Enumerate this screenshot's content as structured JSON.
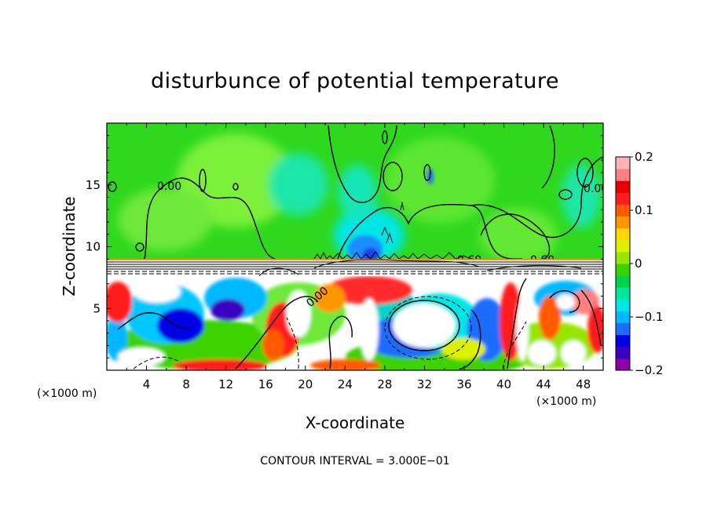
{
  "chart_data": {
    "type": "heatmap",
    "title": "disturbunce of potential temperature",
    "xlabel": "X-coordinate",
    "ylabel": "Z-coordinate",
    "x_unit": "(×1000 m)",
    "x_unit_right": "(×1000 m)",
    "x_ticks": [
      "4",
      "8",
      "12",
      "16",
      "20",
      "24",
      "28",
      "32",
      "36",
      "40",
      "44",
      "48"
    ],
    "y_ticks": [
      "5",
      "10",
      "15"
    ],
    "xlim": [
      0,
      50
    ],
    "ylim": [
      0,
      20
    ],
    "colorbar": {
      "ticks": [
        "0.2",
        "0.1",
        "0",
        "−0.1",
        "−0.2"
      ],
      "range": [
        -0.2,
        0.2
      ],
      "colors": [
        "#8b00a8",
        "#3a00c0",
        "#0000e6",
        "#1e6cff",
        "#00b8ff",
        "#00e6e6",
        "#00e6a0",
        "#00d24a",
        "#3cd200",
        "#96e600",
        "#dcf000",
        "#ffd700",
        "#ff9600",
        "#ff5a00",
        "#ff1e1e",
        "#e60000",
        "#ff8080",
        "#ffb4b4"
      ]
    },
    "contour_labels": [
      "0.00",
      "0.00",
      "0.00",
      "0.60",
      "0.60"
    ],
    "footer": "CONTOUR INTERVAL = 3.000E−01"
  }
}
